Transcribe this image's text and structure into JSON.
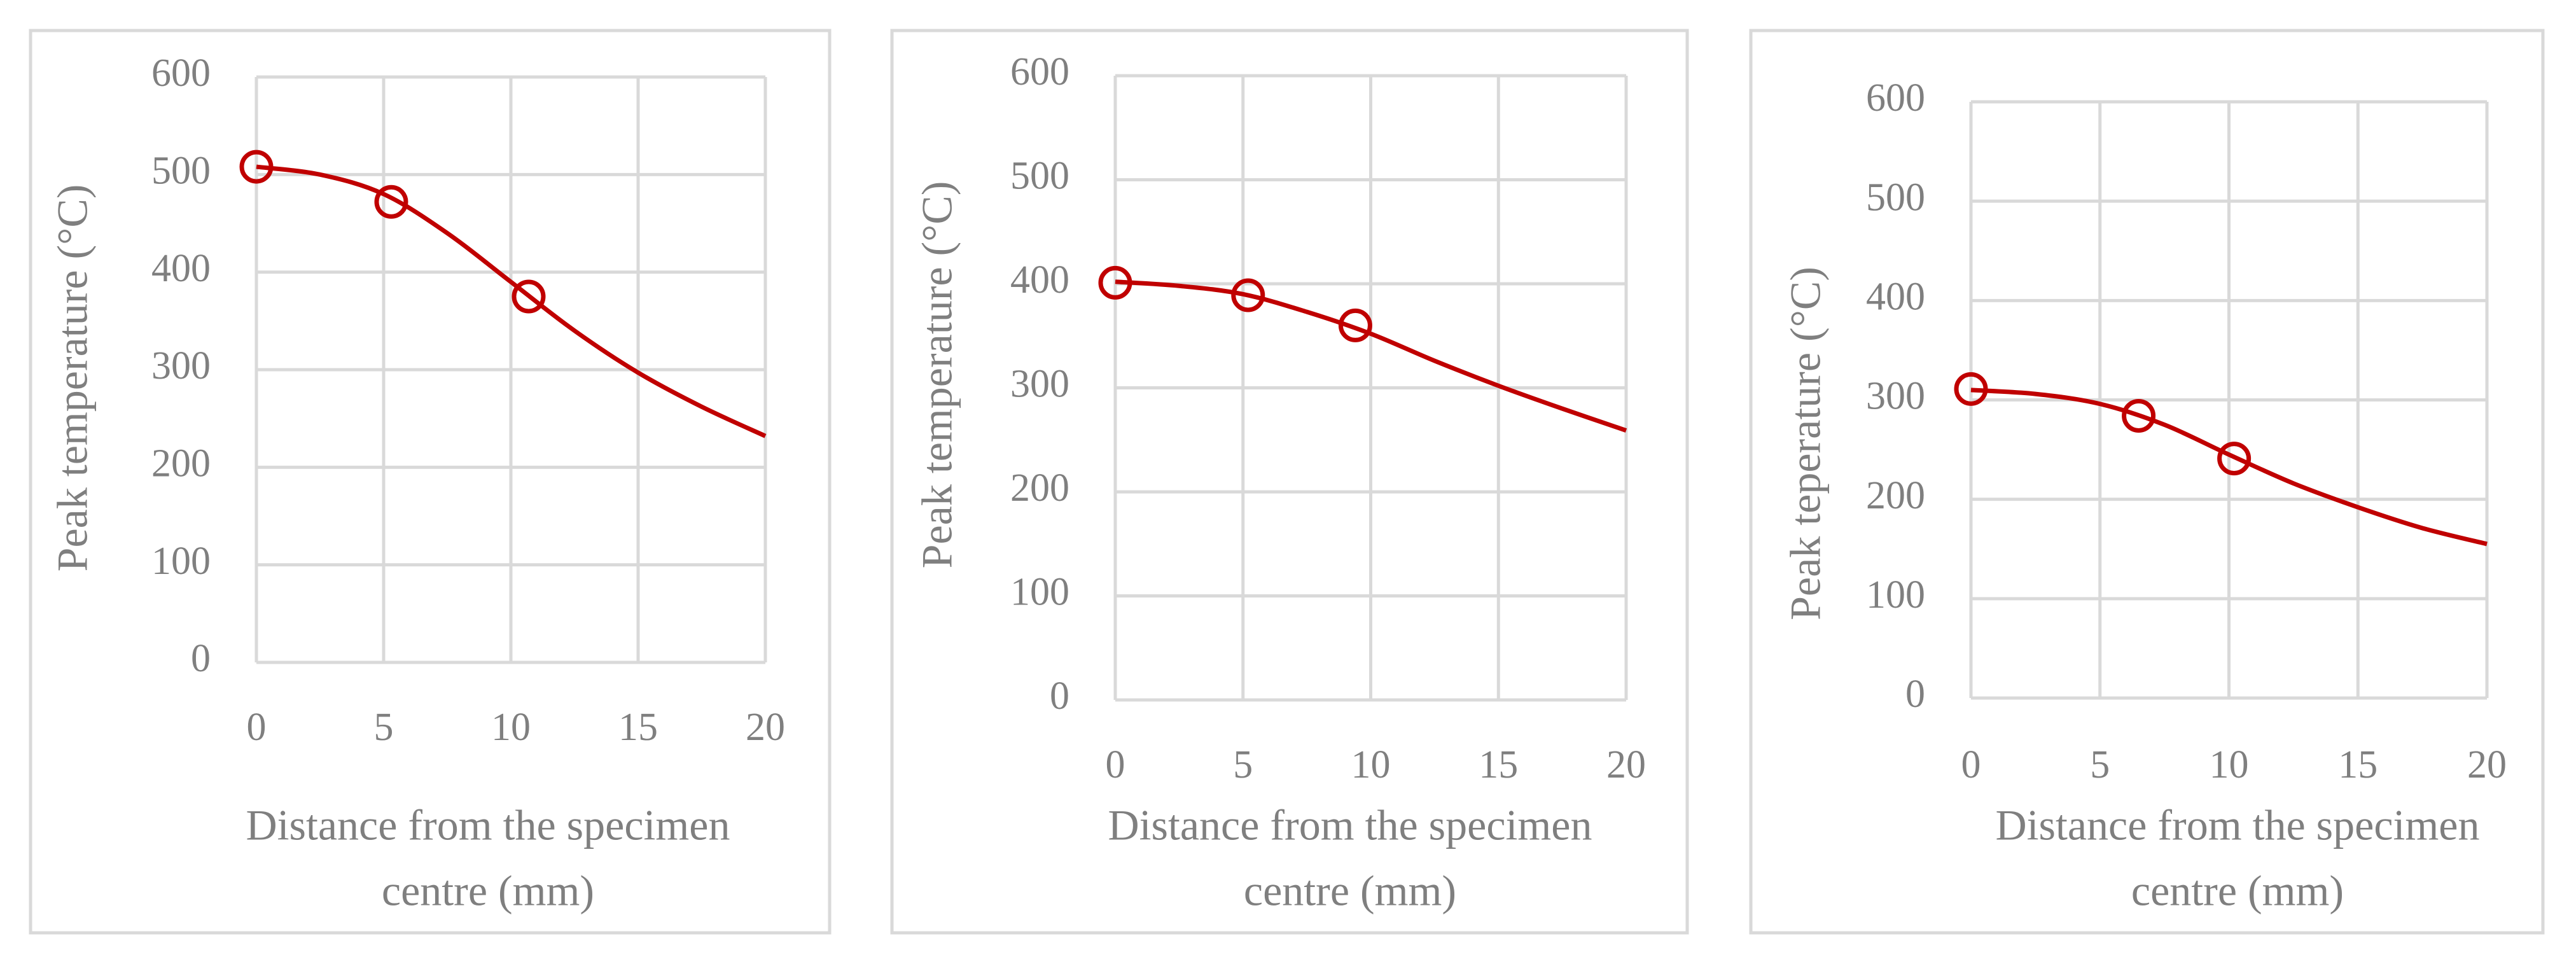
{
  "chart_data": [
    {
      "type": "line",
      "ylabel": "Peak temperature (°C)",
      "xlabel": [
        "Distance from the specimen",
        "centre (mm)"
      ],
      "xlim": [
        0,
        20
      ],
      "ylim": [
        0,
        600
      ],
      "xticks": [
        0,
        5,
        10,
        15,
        20
      ],
      "yticks": [
        0,
        100,
        200,
        300,
        400,
        500,
        600
      ],
      "grid": true,
      "color": "#c00000",
      "markers": {
        "x": [
          0,
          5.3,
          10.7
        ],
        "y": [
          508,
          472,
          375
        ]
      },
      "curve": {
        "x": [
          0,
          2.5,
          5,
          7.5,
          10,
          12.5,
          15,
          17.5,
          20
        ],
        "y": [
          508,
          500,
          480,
          440,
          390,
          340,
          297,
          262,
          232
        ]
      }
    },
    {
      "type": "line",
      "ylabel": "Peak temperature (°C)",
      "xlabel": [
        "Distance from the specimen",
        "centre (mm)"
      ],
      "xlim": [
        0,
        20
      ],
      "ylim": [
        0,
        600
      ],
      "xticks": [
        0,
        5,
        10,
        15,
        20
      ],
      "yticks": [
        0,
        100,
        200,
        300,
        400,
        500,
        600
      ],
      "grid": true,
      "color": "#c00000",
      "markers": {
        "x": [
          0,
          5.2,
          9.4
        ],
        "y": [
          401,
          389,
          360
        ]
      },
      "curve": {
        "x": [
          0,
          2.5,
          5,
          7.5,
          10,
          12.5,
          15,
          17.5,
          20
        ],
        "y": [
          402,
          398,
          390,
          373,
          352,
          326,
          302,
          280,
          259
        ]
      }
    },
    {
      "type": "line",
      "ylabel": "Peak teperature (°C)",
      "xlabel": [
        "Distance from the specimen",
        "centre (mm)"
      ],
      "xlim": [
        0,
        20
      ],
      "ylim": [
        0,
        600
      ],
      "xticks": [
        0,
        5,
        10,
        15,
        20
      ],
      "yticks": [
        0,
        100,
        200,
        300,
        400,
        500,
        600
      ],
      "grid": true,
      "color": "#c00000",
      "markers": {
        "x": [
          0,
          6.5,
          10.2
        ],
        "y": [
          311,
          284,
          241
        ]
      },
      "curve": {
        "x": [
          0,
          2.5,
          5,
          7.5,
          10,
          12.5,
          15,
          17.5,
          20
        ],
        "y": [
          310,
          306,
          296,
          275,
          245,
          216,
          192,
          171,
          155
        ]
      }
    }
  ]
}
